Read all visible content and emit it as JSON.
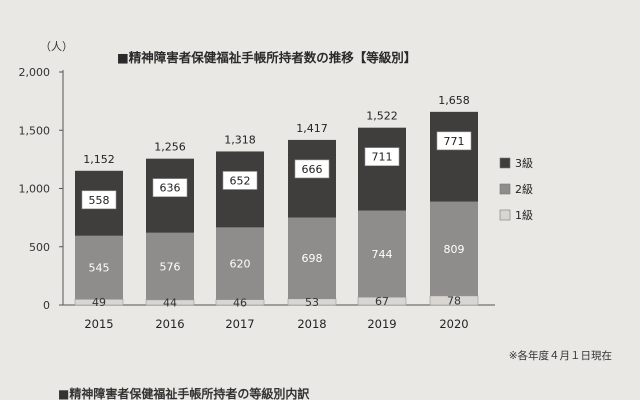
{
  "page": {
    "footer_heading": "■精神障害者保健福祉手帳所持者の等級別内訳"
  },
  "chart_data": {
    "type": "bar",
    "stacked": true,
    "title": "■精神障害者保健福祉手帳所持者数の推移【等級別】",
    "unit_label": "（人）",
    "categories": [
      "2015",
      "2016",
      "2017",
      "2018",
      "2019",
      "2020"
    ],
    "series": [
      {
        "name": "1級",
        "values": [
          49,
          44,
          46,
          53,
          67,
          78
        ],
        "color": "#d8d6d2",
        "label_color": "#333333"
      },
      {
        "name": "2級",
        "values": [
          545,
          576,
          620,
          698,
          744,
          809
        ],
        "color": "#8e8d8b",
        "label_color": "#ffffff"
      },
      {
        "name": "3級",
        "values": [
          558,
          636,
          652,
          666,
          711,
          771
        ],
        "color": "#3f3e3d",
        "label_color": "#222222"
      }
    ],
    "totals": [
      "1,152",
      "1,256",
      "1,318",
      "1,417",
      "1,522",
      "1,658"
    ],
    "y_ticks": [
      "0",
      "500",
      "1,000",
      "1,500",
      "2,000"
    ],
    "y_tick_values": [
      0,
      500,
      1000,
      1500,
      2000
    ],
    "ylim": [
      0,
      2000
    ],
    "legend": [
      "3級",
      "2級",
      "1級"
    ],
    "legend_position": "right",
    "note": "※各年度４月１日現在",
    "grid": false
  }
}
